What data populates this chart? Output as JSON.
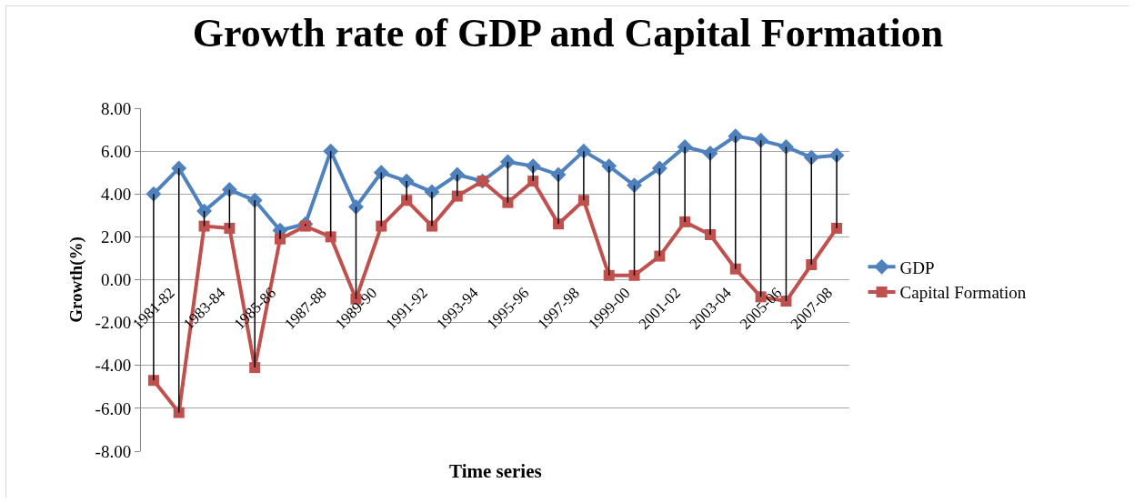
{
  "chart_data": {
    "type": "line",
    "title": "Growth rate of GDP and Capital Formation",
    "xlabel": "Time series",
    "ylabel": "Growth(%)",
    "categories": [
      "1981-82",
      null,
      "1983-84",
      null,
      "1985-86",
      null,
      "1987-88",
      null,
      "1989-90",
      null,
      "1991-92",
      null,
      "1993-94",
      null,
      "1995-96",
      null,
      "1997-98",
      null,
      "1999-00",
      null,
      "2001-02",
      null,
      "2003-04",
      null,
      "2005-06",
      null,
      "2007-08",
      null
    ],
    "series": [
      {
        "name": "GDP",
        "color": "#4f81bd",
        "marker": "diamond",
        "values": [
          4.0,
          5.2,
          3.2,
          4.2,
          3.7,
          2.3,
          2.6,
          6.0,
          3.4,
          5.0,
          4.6,
          4.1,
          4.9,
          4.6,
          5.5,
          5.3,
          4.9,
          6.0,
          5.3,
          4.4,
          5.2,
          6.2,
          5.9,
          6.7,
          6.5,
          6.2,
          5.7,
          5.8
        ],
        "errors": [
          [
            -4.7,
            4.0
          ],
          [
            -6.2,
            5.2
          ],
          [
            2.5,
            3.2
          ],
          [
            2.4,
            4.2
          ],
          [
            -4.1,
            3.7
          ],
          [
            1.9,
            2.3
          ],
          [
            2.5,
            2.6
          ],
          [
            2.0,
            6.0
          ],
          [
            -0.9,
            3.4
          ],
          [
            2.5,
            5.0
          ],
          [
            3.7,
            4.6
          ],
          [
            2.5,
            4.1
          ],
          [
            3.9,
            4.9
          ],
          [
            4.6,
            4.6
          ],
          [
            3.6,
            5.5
          ],
          [
            4.6,
            5.3
          ],
          [
            2.6,
            4.9
          ],
          [
            3.7,
            6.0
          ],
          [
            0.2,
            5.3
          ],
          [
            0.2,
            4.4
          ],
          [
            1.1,
            5.2
          ],
          [
            2.7,
            6.2
          ],
          [
            2.1,
            5.9
          ],
          [
            0.5,
            6.7
          ],
          [
            -0.8,
            6.5
          ],
          [
            -1.0,
            6.2
          ],
          [
            0.7,
            5.7
          ],
          [
            2.4,
            5.8
          ]
        ]
      },
      {
        "name": "Capital Formation",
        "color": "#c0504d",
        "marker": "square",
        "values": [
          -4.7,
          -6.2,
          2.5,
          2.4,
          -4.1,
          1.9,
          2.5,
          2.0,
          -0.9,
          2.5,
          3.7,
          2.5,
          3.9,
          4.6,
          3.6,
          4.6,
          2.6,
          3.7,
          0.2,
          0.2,
          1.1,
          2.7,
          2.1,
          0.5,
          -0.8,
          -1.0,
          0.7,
          2.4
        ]
      }
    ],
    "ylim": [
      -8,
      8
    ],
    "yticks": [
      {
        "value": -8,
        "label": "-8.00"
      },
      {
        "value": -6,
        "label": "-6.00"
      },
      {
        "value": -4,
        "label": "-4.00"
      },
      {
        "value": -2,
        "label": "-2.00"
      },
      {
        "value": 0,
        "label": "0.00"
      },
      {
        "value": 2,
        "label": "2.00"
      },
      {
        "value": 4,
        "label": "4.00"
      },
      {
        "value": 6,
        "label": "6.00"
      },
      {
        "value": 8,
        "label": "8.00"
      }
    ],
    "grid": "y",
    "legend": "right",
    "line_style": "solid"
  }
}
